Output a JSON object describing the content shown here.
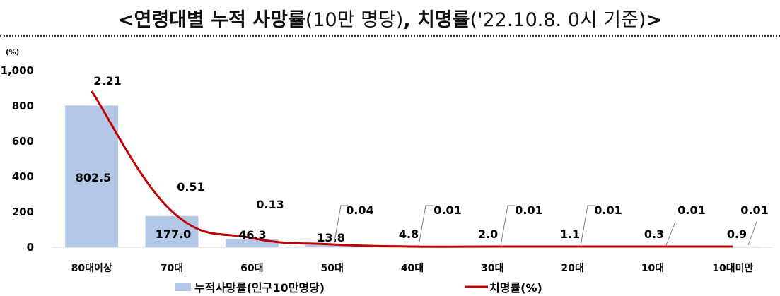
{
  "title": {
    "part1": "<연령대별 누적 사망률",
    "part2": "(10만 명당)",
    "part3": ", 치명률",
    "part4": "('22.10.8. 0시 기준)",
    "part5": ">"
  },
  "chart_data": {
    "type": "bar",
    "yunit": "(%)",
    "ylim": [
      0,
      1000
    ],
    "yticks": [
      "1,000",
      "800",
      "600",
      "400",
      "200",
      "0"
    ],
    "categories": [
      "80대이상",
      "70대",
      "60대",
      "50대",
      "40대",
      "30대",
      "20대",
      "10대",
      "10대미만"
    ],
    "series": [
      {
        "name": "누적사망률(인구10만명당)",
        "type": "bar",
        "color": "#b4c7e7",
        "values": [
          802.5,
          177.0,
          46.3,
          13.8,
          4.8,
          2.0,
          1.1,
          0.3,
          0.9
        ],
        "labels": [
          "802.5",
          "177.0",
          "46.3",
          "13.8",
          "4.8",
          "2.0",
          "1.1",
          "0.3",
          "0.9"
        ]
      },
      {
        "name": "치명률(%)",
        "type": "line",
        "color": "#c00000",
        "values": [
          2.21,
          0.51,
          0.13,
          0.04,
          0.01,
          0.01,
          0.01,
          0.01,
          0.01
        ],
        "labels": [
          "2.21",
          "0.51",
          "0.13",
          "0.04",
          "0.01",
          "0.01",
          "0.01",
          "0.01",
          "0.01"
        ]
      }
    ],
    "legend_position": "bottom"
  }
}
